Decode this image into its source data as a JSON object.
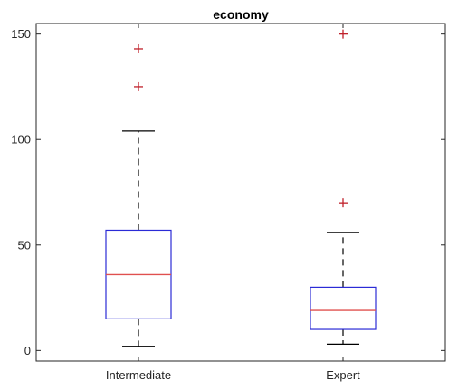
{
  "chart_data": {
    "type": "box",
    "title": "economy",
    "xlabel": "",
    "ylabel": "",
    "categories": [
      "Intermediate",
      "Expert"
    ],
    "boxes": [
      {
        "category": "Intermediate",
        "whisker_low": 2,
        "q1": 15,
        "median": 36,
        "q3": 57,
        "whisker_high": 104,
        "outliers": [
          125,
          143
        ]
      },
      {
        "category": "Expert",
        "whisker_low": 3,
        "q1": 10,
        "median": 19,
        "q3": 30,
        "whisker_high": 56,
        "outliers": [
          70,
          150
        ]
      }
    ],
    "ylim": [
      -5,
      155
    ],
    "yticks": [
      0,
      50,
      100,
      150
    ],
    "grid": false,
    "legend": "none",
    "colors": {
      "box": "#2b2bd6",
      "median": "#e0504f",
      "whisker": "#000000",
      "outlier": "#c0212b",
      "axis": "#262626"
    }
  }
}
